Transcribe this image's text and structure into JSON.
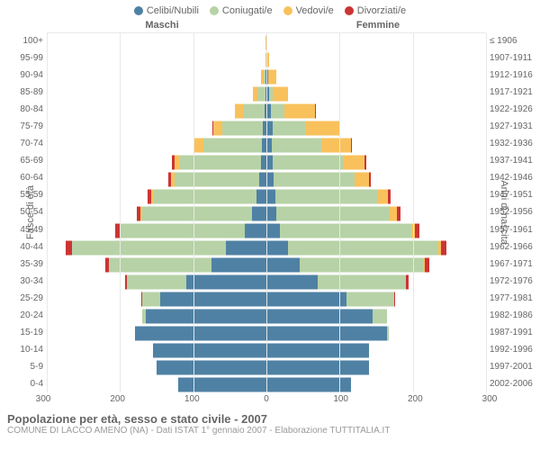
{
  "chart": {
    "type": "population-pyramid",
    "legend": [
      {
        "label": "Celibi/Nubili",
        "color": "#4f81a4"
      },
      {
        "label": "Coniugati/e",
        "color": "#b7d2a6"
      },
      {
        "label": "Vedovi/e",
        "color": "#f9c15c"
      },
      {
        "label": "Divorziati/e",
        "color": "#cc3433"
      }
    ],
    "header_male": "Maschi",
    "header_female": "Femmine",
    "y_left_label": "Fasce di età",
    "y_right_label": "Anni di nascita",
    "x_max": 300,
    "x_ticks": [
      300,
      200,
      100,
      0,
      100,
      200,
      300
    ],
    "grid_color": "#e8e8e8",
    "center_line_color": "#aaaaaa",
    "background_color": "#ffffff",
    "axis_text_color": "#666666",
    "rows": [
      {
        "age": "100+",
        "birth": "≤ 1906",
        "m": {
          "c": 0,
          "co": 0,
          "v": 1,
          "d": 0
        },
        "f": {
          "c": 0,
          "co": 0,
          "v": 0,
          "d": 0
        }
      },
      {
        "age": "95-99",
        "birth": "1907-1911",
        "m": {
          "c": 0,
          "co": 0,
          "v": 1,
          "d": 0
        },
        "f": {
          "c": 1,
          "co": 0,
          "v": 3,
          "d": 0
        }
      },
      {
        "age": "90-94",
        "birth": "1912-1916",
        "m": {
          "c": 1,
          "co": 3,
          "v": 3,
          "d": 0
        },
        "f": {
          "c": 2,
          "co": 1,
          "v": 10,
          "d": 0
        }
      },
      {
        "age": "85-89",
        "birth": "1917-1921",
        "m": {
          "c": 1,
          "co": 11,
          "v": 6,
          "d": 0
        },
        "f": {
          "c": 4,
          "co": 4,
          "v": 22,
          "d": 0
        }
      },
      {
        "age": "80-84",
        "birth": "1922-1926",
        "m": {
          "c": 3,
          "co": 29,
          "v": 11,
          "d": 0
        },
        "f": {
          "c": 6,
          "co": 18,
          "v": 42,
          "d": 1
        }
      },
      {
        "age": "75-79",
        "birth": "1927-1931",
        "m": {
          "c": 5,
          "co": 55,
          "v": 13,
          "d": 1
        },
        "f": {
          "c": 8,
          "co": 45,
          "v": 47,
          "d": 1
        }
      },
      {
        "age": "70-74",
        "birth": "1932-1936",
        "m": {
          "c": 6,
          "co": 80,
          "v": 12,
          "d": 2
        },
        "f": {
          "c": 7,
          "co": 68,
          "v": 40,
          "d": 1
        }
      },
      {
        "age": "65-69",
        "birth": "1937-1941",
        "m": {
          "c": 8,
          "co": 110,
          "v": 8,
          "d": 3
        },
        "f": {
          "c": 9,
          "co": 95,
          "v": 30,
          "d": 2
        }
      },
      {
        "age": "60-64",
        "birth": "1942-1946",
        "m": {
          "c": 10,
          "co": 115,
          "v": 5,
          "d": 4
        },
        "f": {
          "c": 10,
          "co": 110,
          "v": 20,
          "d": 3
        }
      },
      {
        "age": "55-59",
        "birth": "1947-1951",
        "m": {
          "c": 14,
          "co": 140,
          "v": 3,
          "d": 5
        },
        "f": {
          "c": 12,
          "co": 140,
          "v": 14,
          "d": 4
        }
      },
      {
        "age": "50-54",
        "birth": "1952-1956",
        "m": {
          "c": 20,
          "co": 150,
          "v": 2,
          "d": 5
        },
        "f": {
          "c": 14,
          "co": 155,
          "v": 9,
          "d": 5
        }
      },
      {
        "age": "45-49",
        "birth": "1957-1961",
        "m": {
          "c": 30,
          "co": 170,
          "v": 1,
          "d": 6
        },
        "f": {
          "c": 18,
          "co": 180,
          "v": 5,
          "d": 6
        }
      },
      {
        "age": "40-44",
        "birth": "1962-1966",
        "m": {
          "c": 55,
          "co": 210,
          "v": 1,
          "d": 8
        },
        "f": {
          "c": 30,
          "co": 205,
          "v": 3,
          "d": 8
        }
      },
      {
        "age": "35-39",
        "birth": "1967-1971",
        "m": {
          "c": 75,
          "co": 140,
          "v": 0,
          "d": 5
        },
        "f": {
          "c": 45,
          "co": 170,
          "v": 1,
          "d": 6
        }
      },
      {
        "age": "30-34",
        "birth": "1972-1976",
        "m": {
          "c": 110,
          "co": 80,
          "v": 0,
          "d": 3
        },
        "f": {
          "c": 70,
          "co": 120,
          "v": 0,
          "d": 4
        }
      },
      {
        "age": "25-29",
        "birth": "1977-1981",
        "m": {
          "c": 145,
          "co": 25,
          "v": 0,
          "d": 1
        },
        "f": {
          "c": 110,
          "co": 65,
          "v": 0,
          "d": 1
        }
      },
      {
        "age": "20-24",
        "birth": "1982-1986",
        "m": {
          "c": 165,
          "co": 5,
          "v": 0,
          "d": 0
        },
        "f": {
          "c": 145,
          "co": 20,
          "v": 0,
          "d": 0
        }
      },
      {
        "age": "15-19",
        "birth": "1987-1991",
        "m": {
          "c": 180,
          "co": 0,
          "v": 0,
          "d": 0
        },
        "f": {
          "c": 165,
          "co": 2,
          "v": 0,
          "d": 0
        }
      },
      {
        "age": "10-14",
        "birth": "1992-1996",
        "m": {
          "c": 155,
          "co": 0,
          "v": 0,
          "d": 0
        },
        "f": {
          "c": 140,
          "co": 0,
          "v": 0,
          "d": 0
        }
      },
      {
        "age": "5-9",
        "birth": "1997-2001",
        "m": {
          "c": 150,
          "co": 0,
          "v": 0,
          "d": 0
        },
        "f": {
          "c": 140,
          "co": 0,
          "v": 0,
          "d": 0
        }
      },
      {
        "age": "0-4",
        "birth": "2002-2006",
        "m": {
          "c": 120,
          "co": 0,
          "v": 0,
          "d": 0
        },
        "f": {
          "c": 115,
          "co": 0,
          "v": 0,
          "d": 0
        }
      }
    ]
  },
  "footer": {
    "title": "Popolazione per età, sesso e stato civile - 2007",
    "subtitle": "COMUNE DI LACCO AMENO (NA) - Dati ISTAT 1° gennaio 2007 - Elaborazione TUTTITALIA.IT"
  }
}
